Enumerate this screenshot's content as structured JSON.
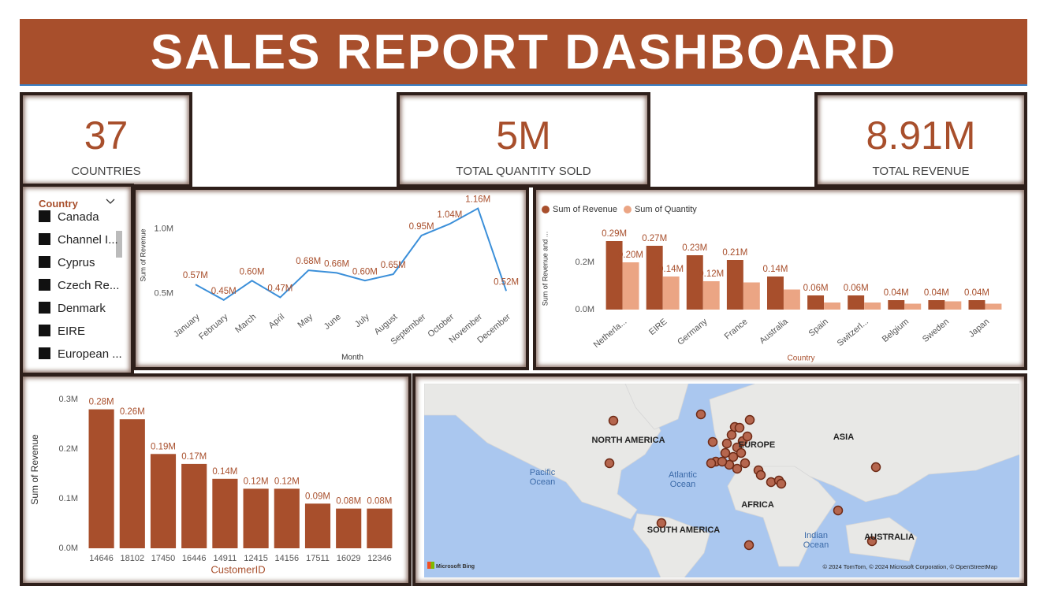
{
  "header": {
    "title": "SALES REPORT DASHBOARD"
  },
  "kpis": [
    {
      "value": "37",
      "label": "COUNTRIES"
    },
    {
      "value": "5M",
      "label": "TOTAL QUANTITY SOLD"
    },
    {
      "value": "8.91M",
      "label": "TOTAL REVENUE"
    }
  ],
  "slicer": {
    "title": "Country",
    "items": [
      "Canada",
      "Channel I...",
      "Cyprus",
      "Czech Re...",
      "Denmark",
      "EIRE",
      "European ..."
    ]
  },
  "map": {
    "labels": [
      "NORTH AMERICA",
      "EUROPE",
      "ASIA",
      "Pacific Ocean",
      "Atlantic Ocean",
      "AFRICA",
      "SOUTH AMERICA",
      "Indian Ocean",
      "AUSTRALIA"
    ],
    "logo": "Microsoft Bing",
    "attribution": "© 2024 TomTom, © 2024 Microsoft Corporation, © OpenStreetMap"
  },
  "chart_data": [
    {
      "type": "line",
      "x_label": "Month",
      "y_label": "Sum of Revenue",
      "categories": [
        "January",
        "February",
        "March",
        "April",
        "May",
        "June",
        "July",
        "August",
        "September",
        "October",
        "November",
        "December"
      ],
      "values": [
        0.57,
        0.45,
        0.6,
        0.47,
        0.68,
        0.66,
        0.6,
        0.65,
        0.95,
        1.04,
        1.16,
        0.52
      ],
      "value_labels": [
        "0.57M",
        "0.45M",
        "0.60M",
        "0.47M",
        "0.68M",
        "0.66M",
        "0.60M",
        "0.65M",
        "0.95M",
        "1.04M",
        "1.16M",
        "0.52M"
      ],
      "color": "#3b8fd9",
      "ylim": [
        0.4,
        1.2
      ],
      "yticks": [
        {
          "value": 0.5,
          "label": "0.5M"
        },
        {
          "value": 1.0,
          "label": "1.0M"
        }
      ],
      "grid": false
    },
    {
      "type": "bar",
      "x_label": "Country",
      "y_label": "Sum of Revenue and ...",
      "categories": [
        "Netherla...",
        "EIRE",
        "Germany",
        "France",
        "Australia",
        "Spain",
        "Switzerl...",
        "Belgium",
        "Sweden",
        "Japan"
      ],
      "series": [
        {
          "name": "Sum of Revenue",
          "color": "#a84f2c",
          "values": [
            0.29,
            0.27,
            0.23,
            0.21,
            0.14,
            0.06,
            0.06,
            0.04,
            0.04,
            0.04
          ],
          "value_labels": [
            "0.29M",
            "0.27M",
            "0.23M",
            "0.21M",
            "0.14M",
            "0.06M",
            "0.06M",
            "0.04M",
            "0.04M",
            "0.04M"
          ]
        },
        {
          "name": "Sum of Quantity",
          "color": "#eba584",
          "values": [
            0.2,
            0.14,
            0.12,
            0.115,
            0.085,
            0.03,
            0.03,
            0.025,
            0.035,
            0.025
          ],
          "value_labels": [
            "0.20M",
            "0.14M",
            "0.12M",
            null,
            null,
            null,
            null,
            null,
            null,
            null
          ]
        }
      ],
      "ylim": [
        0,
        0.4
      ],
      "yticks": [
        {
          "value": 0,
          "label": "0.0M"
        },
        {
          "value": 0.2,
          "label": "0.2M"
        }
      ],
      "grid": false
    },
    {
      "type": "bar",
      "x_label": "CustomerID",
      "y_label": "Sum of Revenue",
      "categories": [
        "14646",
        "18102",
        "17450",
        "16446",
        "14911",
        "12415",
        "14156",
        "17511",
        "16029",
        "12346"
      ],
      "values": [
        0.28,
        0.26,
        0.19,
        0.17,
        0.14,
        0.12,
        0.12,
        0.09,
        0.08,
        0.08
      ],
      "value_labels": [
        "0.28M",
        "0.26M",
        "0.19M",
        "0.17M",
        "0.14M",
        "0.12M",
        "0.12M",
        "0.09M",
        "0.08M",
        "0.08M"
      ],
      "color": "#a84f2c",
      "ylim": [
        0,
        0.3
      ],
      "yticks": [
        {
          "value": 0,
          "label": "0.0M"
        },
        {
          "value": 0.1,
          "label": "0.1M"
        },
        {
          "value": 0.2,
          "label": "0.2M"
        },
        {
          "value": 0.3,
          "label": "0.3M"
        }
      ],
      "grid": false
    }
  ]
}
